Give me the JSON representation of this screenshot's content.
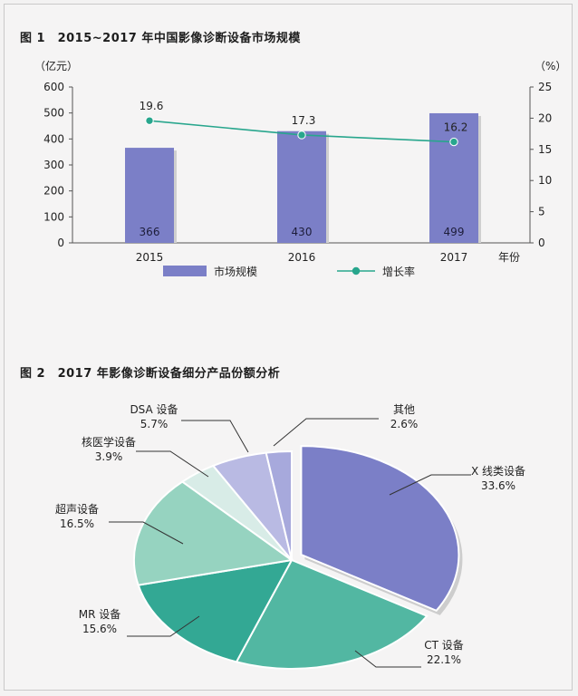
{
  "figure1": {
    "title": "图 1　2015~2017 年中国影像诊断设备市场规模",
    "left_unit": "（亿元）",
    "right_unit": "（%）",
    "x_suffix": "年份",
    "legend_bar": "市场规模",
    "legend_line": "增长率",
    "bar_color": "#7b7fc7",
    "line_color": "#28a68d"
  },
  "figure2": {
    "title": "图 2　2017 年影像诊断设备细分产品份额分析"
  },
  "chart_data": [
    {
      "type": "bar",
      "title": "2015~2017 年中国影像诊断设备市场规模",
      "categories": [
        "2015",
        "2016",
        "2017"
      ],
      "series": [
        {
          "name": "市场规模",
          "values": [
            366,
            430,
            499
          ],
          "labels": [
            "366",
            "430",
            "499"
          ],
          "axis": "left"
        },
        {
          "name": "增长率",
          "type": "line",
          "values": [
            19.6,
            17.3,
            16.2
          ],
          "labels": [
            "19.6",
            "17.3",
            "16.2"
          ],
          "axis": "right"
        }
      ],
      "ylim_left": [
        0,
        600
      ],
      "yticks_left": [
        "0",
        "100",
        "200",
        "300",
        "400",
        "500",
        "600"
      ],
      "ylim_right": [
        0,
        25
      ],
      "yticks_right": [
        "0",
        "5",
        "10",
        "15",
        "20",
        "25"
      ],
      "ylabel_left": "亿元",
      "ylabel_right": "%",
      "xlabel": "年份"
    },
    {
      "type": "pie",
      "title": "2017 年影像诊断设备细分产品份额分析",
      "slices": [
        {
          "name": "X 线类设备",
          "value": 33.6,
          "label": "33.6%",
          "color": "#7b7fc7",
          "exploded": true
        },
        {
          "name": "CT 设备",
          "value": 22.1,
          "label": "22.1%",
          "color": "#52b7a2"
        },
        {
          "name": "MR 设备",
          "value": 15.6,
          "label": "15.6%",
          "color": "#33a894"
        },
        {
          "name": "超声设备",
          "value": 16.5,
          "label": "16.5%",
          "color": "#96d3c0"
        },
        {
          "name": "核医学设备",
          "value": 3.9,
          "label": "3.9%",
          "color": "#d8ece7"
        },
        {
          "name": "DSA 设备",
          "value": 5.7,
          "label": "5.7%",
          "color": "#b9bae3"
        },
        {
          "name": "其他",
          "value": 2.6,
          "label": "2.6%",
          "color": "#a7a9dc"
        }
      ]
    }
  ]
}
